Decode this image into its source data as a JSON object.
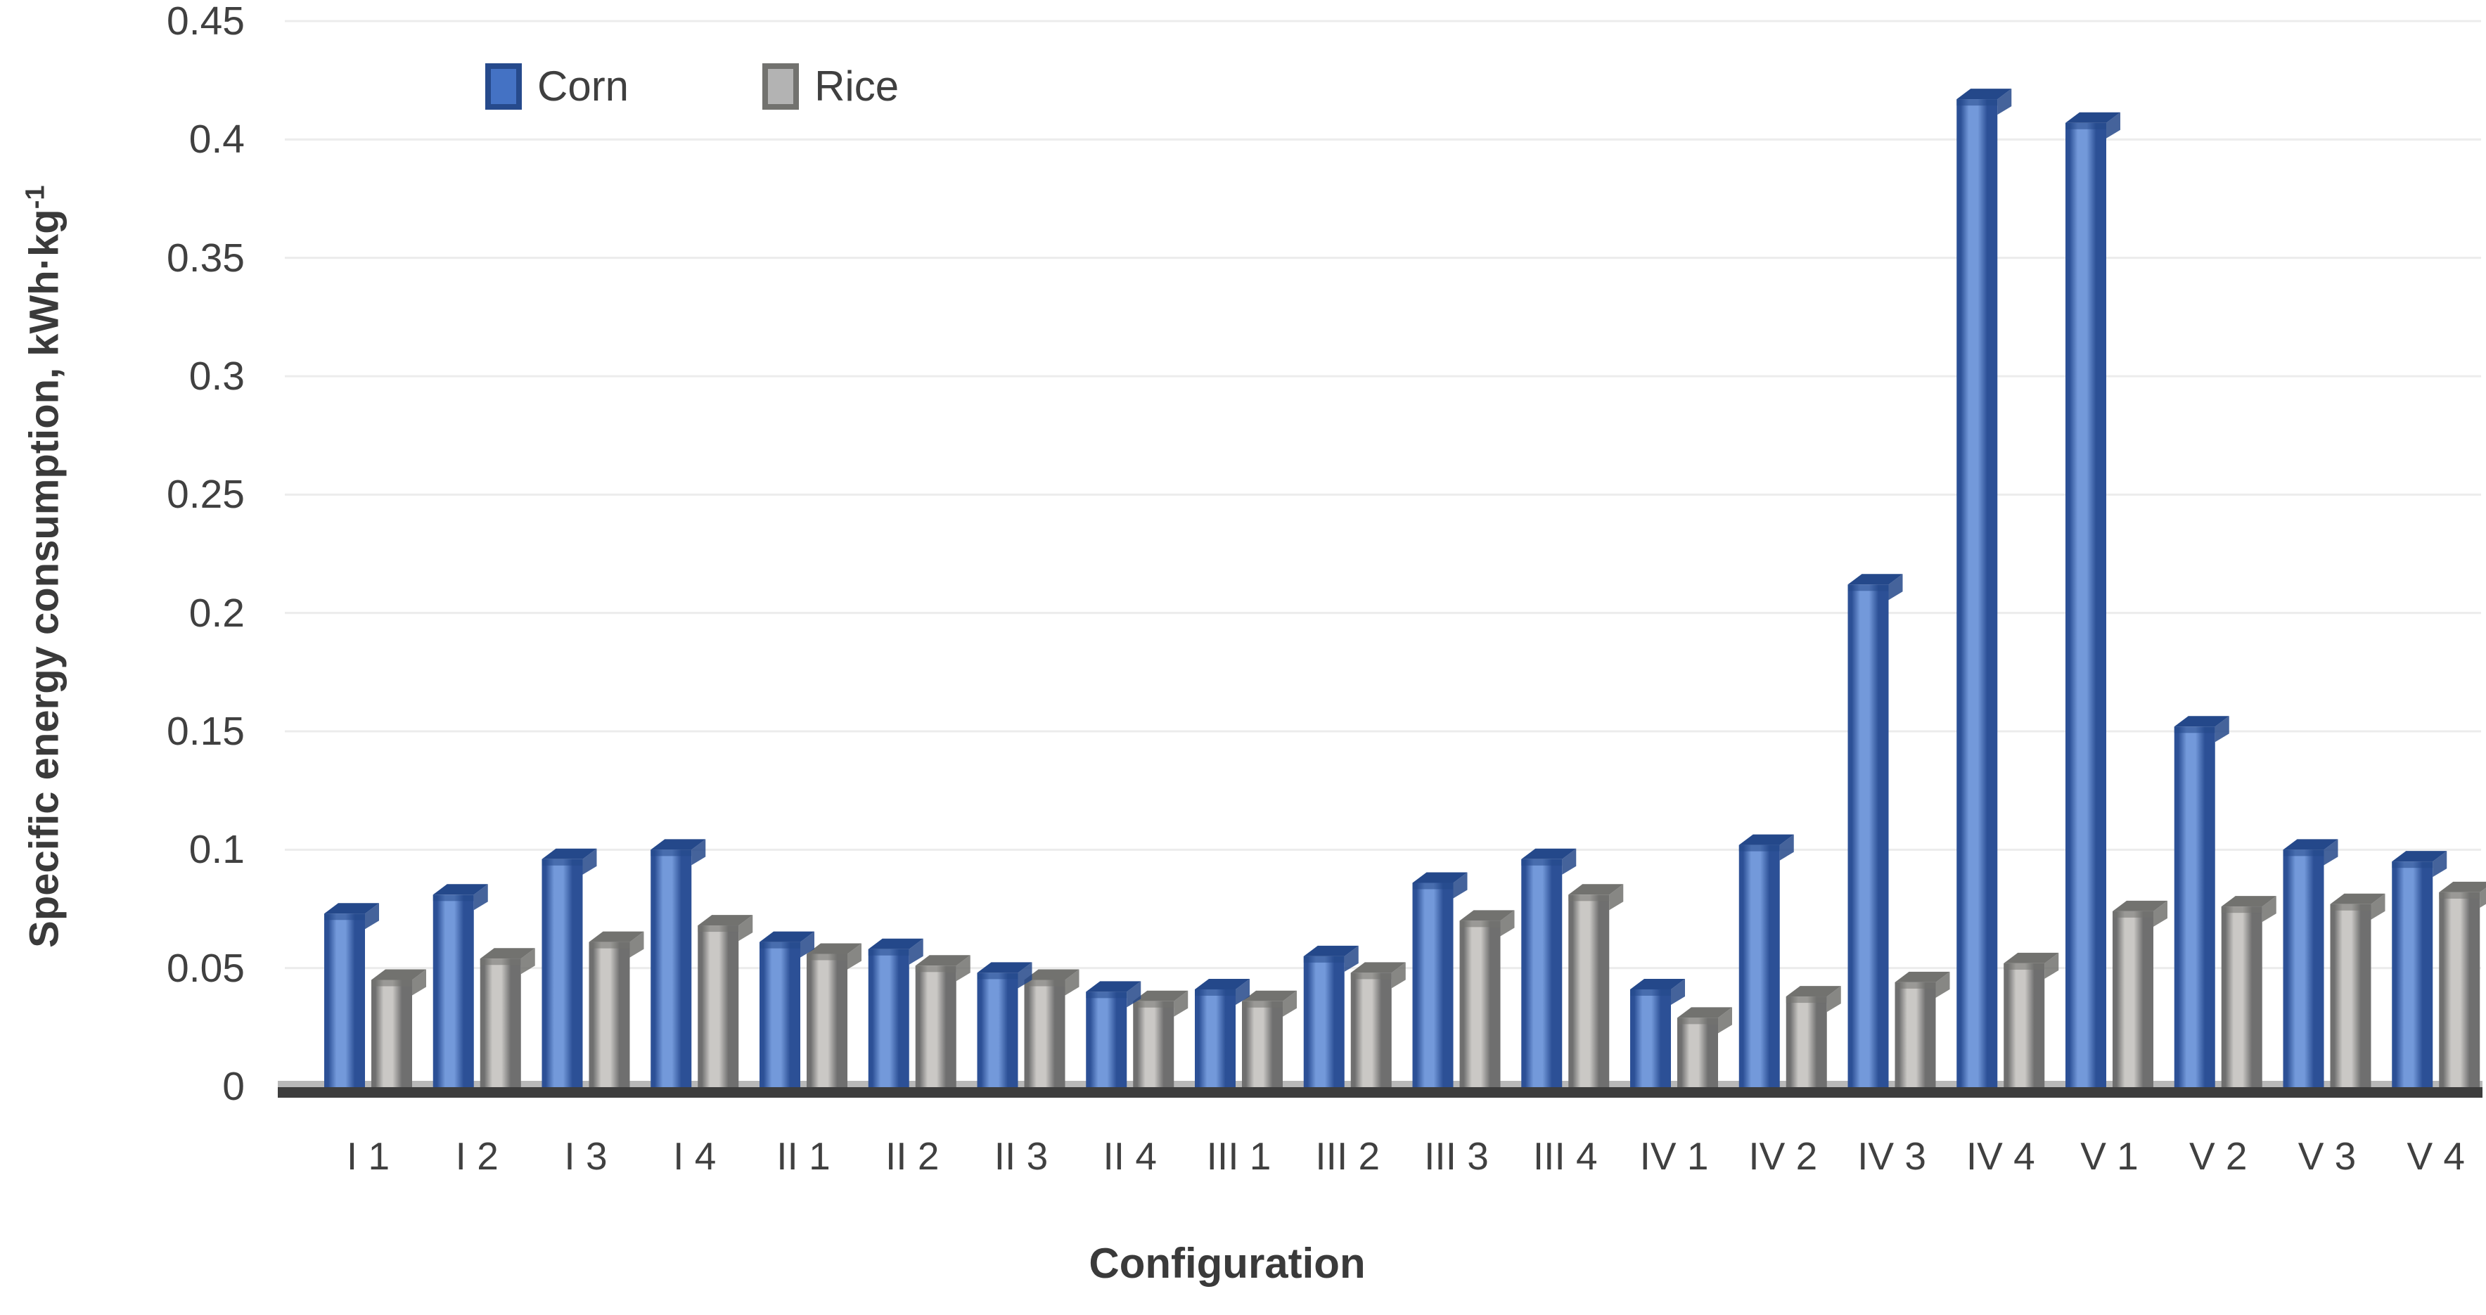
{
  "chart_data": {
    "type": "bar",
    "title": "",
    "xlabel": "Configuration",
    "ylabel": "Specific energy consumption, kWh·kg",
    "ylabel_superscript": "-1",
    "categories": [
      "I 1",
      "I 2",
      "I 3",
      "I 4",
      "II 1",
      "II 2",
      "II 3",
      "II 4",
      "III 1",
      "III 2",
      "III 3",
      "III 4",
      "IV 1",
      "IV 2",
      "IV 3",
      "IV 4",
      "V 1",
      "V 2",
      "V 3",
      "V 4"
    ],
    "series": [
      {
        "name": "Corn",
        "color": "#4472c4",
        "edge_color": "#264a8c",
        "values": [
          0.073,
          0.081,
          0.096,
          0.1,
          0.061,
          0.058,
          0.048,
          0.04,
          0.041,
          0.055,
          0.086,
          0.096,
          0.041,
          0.102,
          0.212,
          0.417,
          0.407,
          0.152,
          0.1,
          0.095
        ]
      },
      {
        "name": "Rice",
        "color": "#b3b3b3",
        "edge_color": "#72726f",
        "values": [
          0.045,
          0.054,
          0.061,
          0.068,
          0.056,
          0.051,
          0.045,
          0.036,
          0.036,
          0.048,
          0.07,
          0.081,
          0.029,
          0.038,
          0.044,
          0.052,
          0.074,
          0.076,
          0.077,
          0.082
        ]
      }
    ],
    "y_ticks": [
      "0",
      "0.05",
      "0.1",
      "0.15",
      "0.2",
      "0.25",
      "0.3",
      "0.35",
      "0.4",
      "0.45"
    ],
    "ylim": [
      0,
      0.45
    ],
    "grid": true,
    "legend_position": "top-left"
  },
  "colors": {
    "gridline": "#ececec",
    "floor_light": "#b8b8b8",
    "floor_dark": "#3d3d3d",
    "text": "#3f3f3f",
    "corn_face_center": "#7399da",
    "corn_face_edge": "#2c5096",
    "corn_cap": "#24488a",
    "rice_face_center": "#cac8c5",
    "rice_face_edge": "#6f6f6f",
    "rice_cap": "#72726f"
  }
}
